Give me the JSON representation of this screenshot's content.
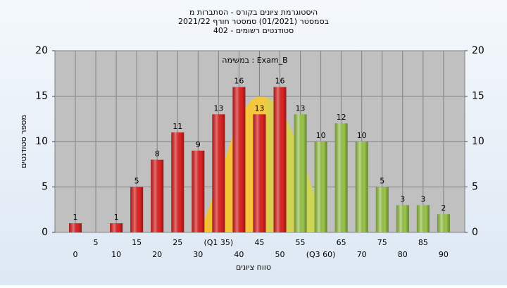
{
  "chart_data": {
    "type": "bar",
    "title": [
      "היסטוגרמת ציונים בקורס - הסתברות מ",
      "בסמסטר  (01/2021)  סמסטר חורף 2021/22",
      "סטודנטים רשומים - 402"
    ],
    "annotation": "במשימה : Exam_B",
    "x_label": "טווח ציונים",
    "y_label": "מספר סטודנטים",
    "categories": [
      "0",
      "5",
      "10",
      "15",
      "20",
      "25",
      "30",
      "(Q1 35)",
      "40",
      "45",
      "50",
      "55",
      "(Q3 60)",
      "65",
      "70",
      "75",
      "80",
      "85",
      "90"
    ],
    "values": [
      1,
      0,
      1,
      5,
      8,
      11,
      9,
      13,
      16,
      13,
      16,
      13,
      10,
      12,
      10,
      5,
      3,
      3,
      2
    ],
    "colors": [
      "#e02424",
      "#e02424",
      "#e02424",
      "#e02424",
      "#e02424",
      "#e02424",
      "#e02424",
      "#e02424",
      "#e02424",
      "#e02424",
      "#e02424",
      "#9cc84c",
      "#9cc84c",
      "#9cc84c",
      "#9cc84c",
      "#9cc84c",
      "#9cc84c",
      "#9cc84c",
      "#9cc84c"
    ],
    "ylim": [
      0,
      20
    ],
    "yticks": [
      0,
      5,
      10,
      15,
      20
    ],
    "y2lim": [
      0,
      20
    ],
    "y2ticks": [
      0,
      5,
      10,
      15,
      20
    ],
    "grid": true
  }
}
